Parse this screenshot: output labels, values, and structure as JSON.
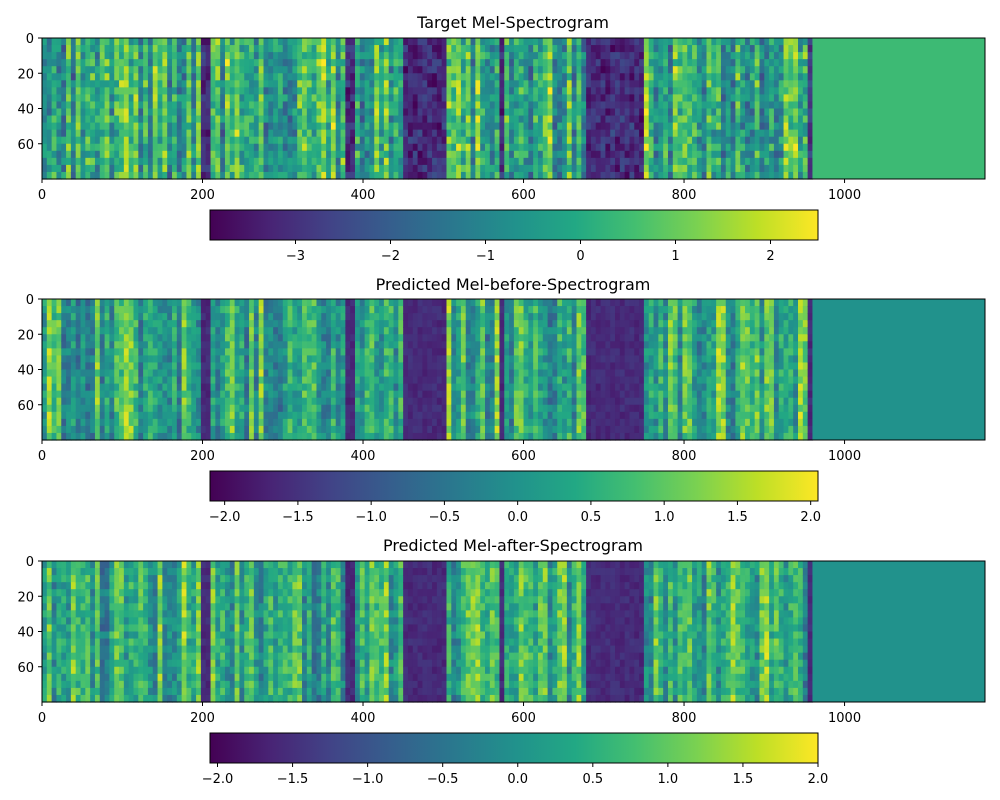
{
  "chart_data": [
    {
      "type": "heatmap",
      "title": "Target Mel-Spectrogram",
      "xlim": [
        0,
        1175
      ],
      "ylim": [
        80,
        0
      ],
      "xticks": [
        0,
        200,
        400,
        600,
        800,
        1000
      ],
      "yticks": [
        0,
        20,
        40,
        60
      ],
      "speech_frames": 960,
      "n_mels": 80,
      "pad_value": 0.45,
      "value_range": [
        -3.9,
        2.5
      ],
      "colormap": "viridis",
      "colorbar": {
        "orientation": "horizontal",
        "range": [
          -3.9,
          2.5
        ],
        "ticks": [
          -3,
          -2,
          -1,
          0,
          1,
          2
        ],
        "tick_labels": [
          "−3",
          "−2",
          "−1",
          "0",
          "1",
          "2"
        ]
      }
    },
    {
      "type": "heatmap",
      "title": "Predicted Mel-before-Spectrogram",
      "xlim": [
        0,
        1175
      ],
      "ylim": [
        80,
        0
      ],
      "xticks": [
        0,
        200,
        400,
        600,
        800,
        1000
      ],
      "yticks": [
        0,
        20,
        40,
        60
      ],
      "speech_frames": 960,
      "n_mels": 80,
      "pad_value": 0.0,
      "value_range": [
        -2.1,
        2.05
      ],
      "colormap": "viridis",
      "colorbar": {
        "orientation": "horizontal",
        "range": [
          -2.1,
          2.05
        ],
        "ticks": [
          -2.0,
          -1.5,
          -1.0,
          -0.5,
          0.0,
          0.5,
          1.0,
          1.5,
          2.0
        ],
        "tick_labels": [
          "−2.0",
          "−1.5",
          "−1.0",
          "−0.5",
          "0.0",
          "0.5",
          "1.0",
          "1.5",
          "2.0"
        ]
      }
    },
    {
      "type": "heatmap",
      "title": "Predicted Mel-after-Spectrogram",
      "xlim": [
        0,
        1175
      ],
      "ylim": [
        80,
        0
      ],
      "xticks": [
        0,
        200,
        400,
        600,
        800,
        1000
      ],
      "yticks": [
        0,
        20,
        40,
        60
      ],
      "speech_frames": 960,
      "n_mels": 80,
      "pad_value": 0.0,
      "value_range": [
        -2.05,
        2.0
      ],
      "colormap": "viridis",
      "colorbar": {
        "orientation": "horizontal",
        "range": [
          -2.05,
          2.0
        ],
        "ticks": [
          -2.0,
          -1.5,
          -1.0,
          -0.5,
          0.0,
          0.5,
          1.0,
          1.5,
          2.0
        ],
        "tick_labels": [
          "−2.0",
          "−1.5",
          "−1.0",
          "−0.5",
          "0.0",
          "0.5",
          "1.0",
          "1.5",
          "2.0"
        ]
      }
    }
  ],
  "colors": {
    "viridis_dark": "#440154",
    "viridis_mid": "#21918c",
    "viridis_light": "#fde725"
  }
}
